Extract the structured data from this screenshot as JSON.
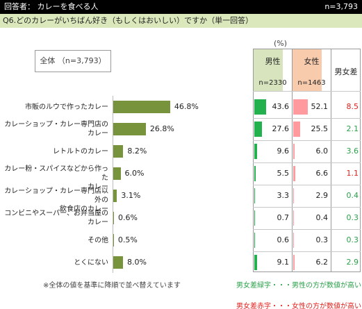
{
  "header": {
    "respondents": "回答者： カレーを食べる人",
    "n": "n=3,793"
  },
  "question": "Q6.どのカレーがいちばん好き（もしくはおいしい）ですか（単一回答）",
  "overall_label": "全体 （n=3,793）",
  "unit": "(%)",
  "table_header": {
    "male": "男性",
    "male_n": "n=2330",
    "female": "女性",
    "female_n": "n=1463",
    "diff": "男女差"
  },
  "note": "※全体の値を基準に降順で並べ替えています",
  "legend": {
    "green": "男女差緑字・・・男性の方が数値が高い",
    "red": "男女差赤字・・・女性の方が数値が高い"
  },
  "colors": {
    "overall_bar": "#77933c",
    "male_bar": "#22b14c",
    "female_bar": "#ff9a9e",
    "diff_green": "#2aa14a",
    "diff_red": "#e0201c"
  },
  "chart_data": {
    "type": "bar",
    "orientation": "horizontal",
    "categories": [
      [
        "市販のルウで作ったカレー"
      ],
      [
        "カレーショップ・カレー専門店の",
        "カレー"
      ],
      [
        "レトルトのカレー"
      ],
      [
        "カレー粉・スパイスなどから作った",
        "カレー"
      ],
      [
        "カレーショップ・カレー専門店以外の",
        "飲食店のカレー"
      ],
      [
        "コンビニやスーパー、お弁当屋の",
        "カレー"
      ],
      [
        "その他"
      ],
      [
        "とくにない"
      ]
    ],
    "series": [
      {
        "name": "全体",
        "values": [
          46.8,
          26.8,
          8.2,
          6.0,
          3.1,
          0.6,
          0.5,
          8.0
        ]
      },
      {
        "name": "男性",
        "values": [
          43.6,
          27.6,
          9.6,
          5.5,
          3.3,
          0.7,
          0.6,
          9.1
        ]
      },
      {
        "name": "女性",
        "values": [
          52.1,
          25.5,
          6.0,
          6.6,
          2.9,
          0.4,
          0.3,
          6.2
        ]
      }
    ],
    "diff": [
      {
        "value": "8.5",
        "color": "red"
      },
      {
        "value": "2.1",
        "color": "green"
      },
      {
        "value": "3.6",
        "color": "green"
      },
      {
        "value": "1.1",
        "color": "red"
      },
      {
        "value": "0.4",
        "color": "green"
      },
      {
        "value": "0.3",
        "color": "green"
      },
      {
        "value": "0.3",
        "color": "green"
      },
      {
        "value": "2.9",
        "color": "green"
      }
    ]
  }
}
